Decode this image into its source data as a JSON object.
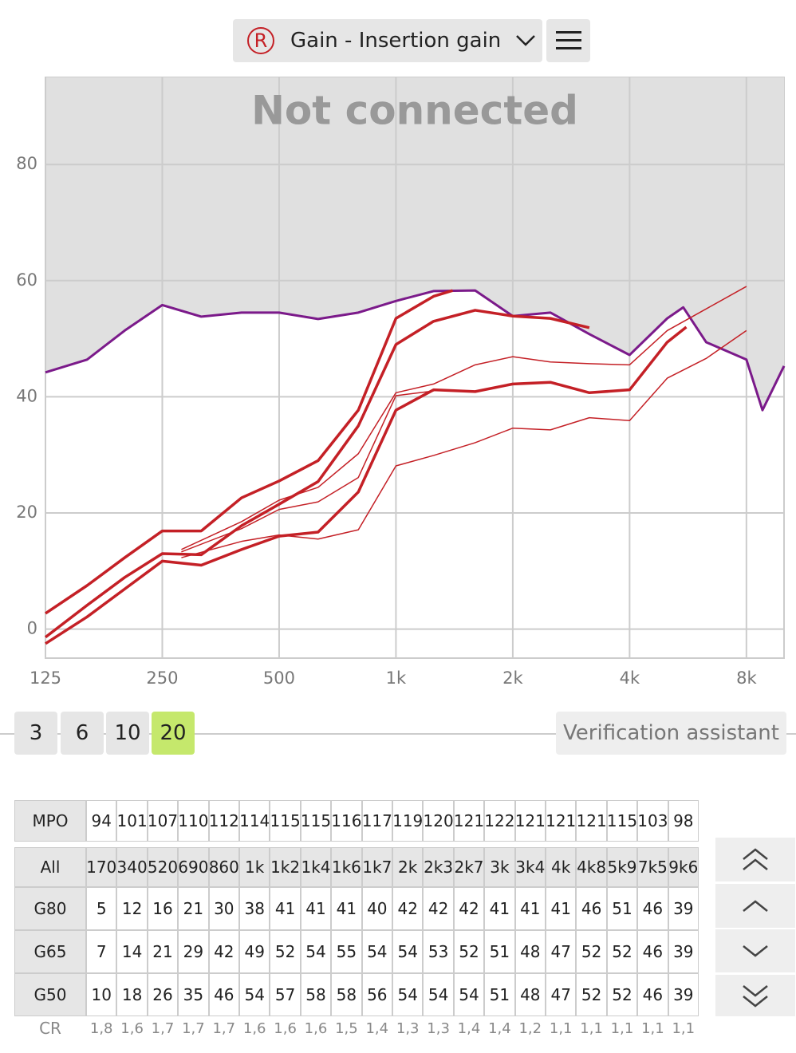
{
  "header": {
    "side": "R",
    "title": "Gain - Insertion gain"
  },
  "chart_data": {
    "type": "line",
    "annotation": "Not connected",
    "xlim": [
      125,
      10000
    ],
    "ylim": [
      -5,
      95
    ],
    "x_log": true,
    "grid": true,
    "xticks": [
      125,
      250,
      500,
      {
        "value": 1000,
        "label": "1k"
      },
      {
        "value": 2000,
        "label": "2k"
      },
      {
        "value": 4000,
        "label": "4k"
      },
      {
        "value": 8000,
        "label": "8k"
      }
    ],
    "yticks": [
      0,
      20,
      40,
      60,
      80
    ],
    "series": [
      {
        "color": "#7b1a8a",
        "line_width": 3,
        "x": [
          125,
          160,
          200,
          250,
          315,
          400,
          500,
          630,
          800,
          1000,
          1250,
          1600,
          2000,
          2500,
          3150,
          4000,
          5000,
          5500,
          6300,
          8000,
          8800,
          10000
        ],
        "values": [
          44.2,
          46.4,
          51.4,
          55.8,
          53.8,
          54.5,
          54.5,
          53.4,
          54.5,
          56.5,
          58.2,
          58.3,
          53.9,
          54.5,
          50.8,
          47.2,
          53.5,
          55.4,
          49.4,
          46.4,
          37.7,
          45.3
        ]
      },
      {
        "color": "#c42026",
        "line_width": 3.5,
        "x": [
          125,
          160,
          200,
          250,
          315,
          400,
          500,
          630,
          800,
          1000,
          1250,
          1400
        ],
        "values": [
          2.7,
          7.5,
          12.3,
          16.9,
          16.9,
          22.6,
          25.5,
          29,
          37.7,
          53.5,
          57.3,
          58.3
        ]
      },
      {
        "color": "#c42026",
        "line_width": 3.5,
        "x": [
          125,
          160,
          200,
          250,
          315,
          400,
          500,
          630,
          800,
          1000,
          1250,
          1600,
          2000,
          2500,
          3150
        ],
        "values": [
          -1.4,
          4.1,
          8.9,
          13,
          12.8,
          17.8,
          21.5,
          25.4,
          35,
          49,
          53,
          54.9,
          53.9,
          53.5,
          51.9
        ]
      },
      {
        "color": "#c42026",
        "line_width": 3.5,
        "x": [
          125,
          160,
          200,
          250,
          315,
          400,
          500,
          630,
          800,
          1000,
          1250,
          1600,
          2000,
          2500,
          3150,
          4000,
          5000,
          5600
        ],
        "values": [
          -2.5,
          2.1,
          6.9,
          11.7,
          11,
          13.7,
          16,
          16.7,
          23.6,
          37.7,
          41.2,
          40.9,
          42.2,
          42.5,
          40.7,
          41.2,
          49.4,
          52
        ]
      },
      {
        "color": "#c42026",
        "line_width": 1.5,
        "x": [
          280,
          400,
          500,
          630,
          800,
          1000,
          1250,
          1600,
          2000,
          2500,
          3150,
          4000,
          5000,
          8000
        ],
        "values": [
          13.7,
          18.5,
          22.2,
          24.4,
          30.2,
          40.7,
          42.2,
          45.5,
          46.9,
          46,
          45.7,
          45.5,
          51.4,
          59
        ]
      },
      {
        "color": "#c42026",
        "line_width": 1.5,
        "x": [
          280,
          400,
          500,
          630,
          800,
          1000,
          1250
        ],
        "values": [
          13.3,
          17.3,
          20.6,
          21.9,
          26.1,
          40.2,
          41
        ]
      },
      {
        "color": "#c42026",
        "line_width": 1.5,
        "x": [
          280,
          400,
          500,
          630,
          800,
          1000,
          1250,
          1600,
          2000,
          2500,
          3150,
          4000,
          5000,
          6300,
          8000
        ],
        "values": [
          12.3,
          15.1,
          16.2,
          15.5,
          17.1,
          28.1,
          29.9,
          32.1,
          34.6,
          34.3,
          36.4,
          35.9,
          43.2,
          46.6,
          51.4
        ]
      }
    ]
  },
  "levels": [
    "3",
    "6",
    "10",
    "20"
  ],
  "selected_level_index": 3,
  "verification_button": "Verification assistant",
  "table": {
    "mpo": {
      "label": "MPO",
      "values": [
        "94",
        "101",
        "107",
        "110",
        "112",
        "114",
        "115",
        "115",
        "116",
        "117",
        "119",
        "120",
        "121",
        "122",
        "121",
        "121",
        "121",
        "115",
        "103",
        "98"
      ]
    },
    "header": {
      "label": "All",
      "values": [
        "170",
        "340",
        "520",
        "690",
        "860",
        "1k",
        "1k2",
        "1k4",
        "1k6",
        "1k7",
        "2k",
        "2k3",
        "2k7",
        "3k",
        "3k4",
        "4k",
        "4k8",
        "5k9",
        "7k5",
        "9k6"
      ]
    },
    "rows": [
      {
        "label": "G80",
        "values": [
          "5",
          "12",
          "16",
          "21",
          "30",
          "38",
          "41",
          "41",
          "41",
          "40",
          "42",
          "42",
          "42",
          "41",
          "41",
          "41",
          "46",
          "51",
          "46",
          "39"
        ]
      },
      {
        "label": "G65",
        "values": [
          "7",
          "14",
          "21",
          "29",
          "42",
          "49",
          "52",
          "54",
          "55",
          "54",
          "54",
          "53",
          "52",
          "51",
          "48",
          "47",
          "52",
          "52",
          "46",
          "39"
        ]
      },
      {
        "label": "G50",
        "values": [
          "10",
          "18",
          "26",
          "35",
          "46",
          "54",
          "57",
          "58",
          "58",
          "56",
          "54",
          "54",
          "54",
          "51",
          "48",
          "47",
          "52",
          "52",
          "46",
          "39"
        ]
      }
    ],
    "cr": {
      "label": "CR",
      "values": [
        "1,8",
        "1,6",
        "1,7",
        "1,7",
        "1,7",
        "1,6",
        "1,6",
        "1,6",
        "1,5",
        "1,4",
        "1,3",
        "1,3",
        "1,4",
        "1,4",
        "1,2",
        "1,1",
        "1,1",
        "1,1",
        "1,1",
        "1,1"
      ]
    }
  }
}
